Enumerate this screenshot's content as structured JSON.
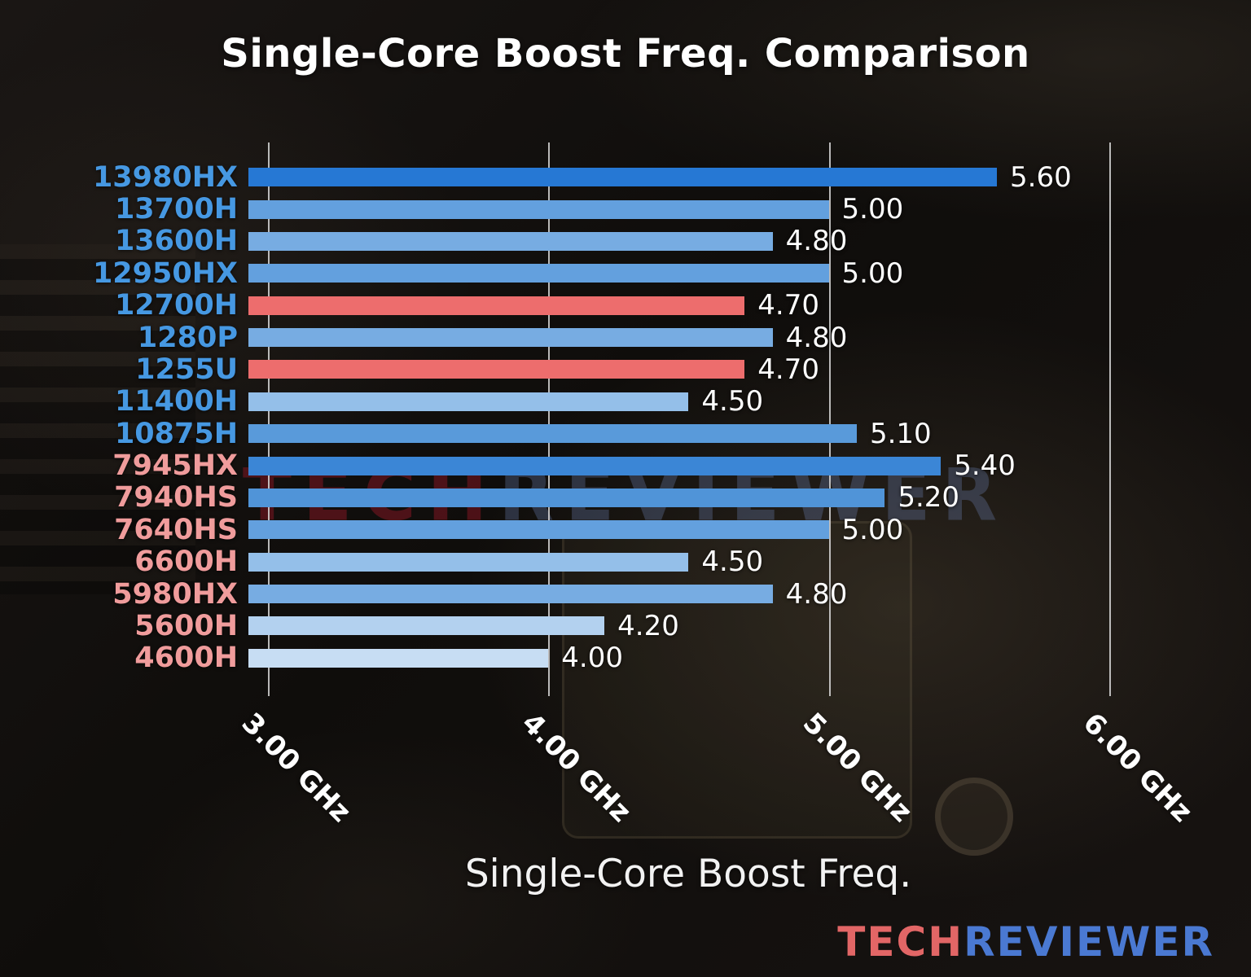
{
  "page": {
    "watermark": {
      "tech": "TECH",
      "reviewer": "REVIEWER"
    },
    "logo": {
      "tech": "TECH",
      "reviewer": "REVIEWER",
      "tech_color": "#e26666",
      "reviewer_color": "#4a79d2"
    }
  },
  "chart_data": {
    "type": "bar",
    "orientation": "horizontal",
    "title": "Single-Core Boost Freq. Comparison",
    "xlabel": "Single-Core Boost Freq.",
    "ylabel": "",
    "unit": "GHz",
    "grid": true,
    "value_labels_shown": true,
    "axis_range": [
      2.93,
      6.3
    ],
    "ticks": [
      {
        "value": 3.0,
        "label": "3.00 GHz"
      },
      {
        "value": 4.0,
        "label": "4.00 GHz"
      },
      {
        "value": 5.0,
        "label": "5.00 GHz"
      },
      {
        "value": 6.0,
        "label": "6.00 GHz"
      }
    ],
    "colors": {
      "intel_category_label": "#4698e2",
      "amd_category_label": "#f09c9c",
      "highlight_bar": "#ed6d6d",
      "value_label": "#ffffff"
    },
    "bars": [
      {
        "category": "13980HX",
        "value": 5.6,
        "value_label": "5.60",
        "bar_color": "#2678d4",
        "category_color": "#4698e2"
      },
      {
        "category": "13700H",
        "value": 5.0,
        "value_label": "5.00",
        "bar_color": "#63a0de",
        "category_color": "#4698e2"
      },
      {
        "category": "13600H",
        "value": 4.8,
        "value_label": "4.80",
        "bar_color": "#77ace2",
        "category_color": "#4698e2"
      },
      {
        "category": "12950HX",
        "value": 5.0,
        "value_label": "5.00",
        "bar_color": "#63a0de",
        "category_color": "#4698e2"
      },
      {
        "category": "12700H",
        "value": 4.7,
        "value_label": "4.70",
        "bar_color": "#ed6d6d",
        "category_color": "#4698e2"
      },
      {
        "category": "1280P",
        "value": 4.8,
        "value_label": "4.80",
        "bar_color": "#77ace2",
        "category_color": "#4698e2"
      },
      {
        "category": "1255U",
        "value": 4.7,
        "value_label": "4.70",
        "bar_color": "#ed6d6d",
        "category_color": "#4698e2"
      },
      {
        "category": "11400H",
        "value": 4.5,
        "value_label": "4.50",
        "bar_color": "#94bfe9",
        "category_color": "#4698e2"
      },
      {
        "category": "10875H",
        "value": 5.1,
        "value_label": "5.10",
        "bar_color": "#599ada",
        "category_color": "#4698e2"
      },
      {
        "category": "7945HX",
        "value": 5.4,
        "value_label": "5.40",
        "bar_color": "#3b86d6",
        "category_color": "#f09c9c"
      },
      {
        "category": "7940HS",
        "value": 5.2,
        "value_label": "5.20",
        "bar_color": "#5094d8",
        "category_color": "#f09c9c"
      },
      {
        "category": "7640HS",
        "value": 5.0,
        "value_label": "5.00",
        "bar_color": "#63a0de",
        "category_color": "#f09c9c"
      },
      {
        "category": "6600H",
        "value": 4.5,
        "value_label": "4.50",
        "bar_color": "#94bfe9",
        "category_color": "#f09c9c"
      },
      {
        "category": "5980HX",
        "value": 4.8,
        "value_label": "4.80",
        "bar_color": "#77ace2",
        "category_color": "#f09c9c"
      },
      {
        "category": "5600H",
        "value": 4.2,
        "value_label": "4.20",
        "bar_color": "#b3d1ef",
        "category_color": "#f09c9c"
      },
      {
        "category": "4600H",
        "value": 4.0,
        "value_label": "4.00",
        "bar_color": "#c7ddf3",
        "category_color": "#f09c9c"
      }
    ]
  }
}
